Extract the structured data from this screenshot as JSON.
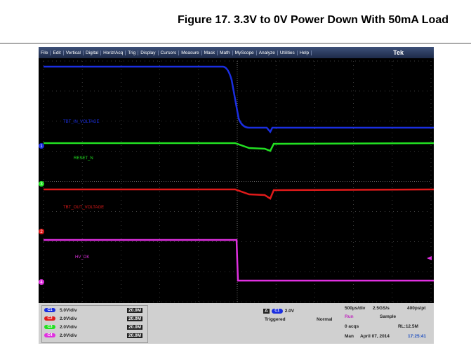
{
  "header": {
    "title": "Figure 17. 3.3V to 0V Power Down With 50mA Load"
  },
  "menu": {
    "items": [
      "File",
      "Edit",
      "Vertical",
      "Digital",
      "Horiz/Acq",
      "Trig",
      "Display",
      "Cursors",
      "Measure",
      "Mask",
      "Math",
      "MyScope",
      "Analyze",
      "Utilities",
      "Help"
    ],
    "brand": "Tek"
  },
  "screen": {
    "traces": [
      {
        "label": "TBT_IN_VOLTAGE",
        "marker": "1",
        "color": "#1a2ee0"
      },
      {
        "label": "RESET_N",
        "marker": "3",
        "color": "#22e022"
      },
      {
        "label": "TBT_OUT_VOLTAGE",
        "marker": "2",
        "color": "#e01a1a"
      },
      {
        "label": "HV_OK",
        "marker": "4",
        "color": "#e030e0"
      }
    ]
  },
  "status": {
    "channels": [
      {
        "name": "C1",
        "scale": "5.0V/div",
        "bandwidth": "20.0M"
      },
      {
        "name": "C2",
        "scale": "2.0V/div",
        "bandwidth": "20.0M"
      },
      {
        "name": "C3",
        "scale": "2.0V/div",
        "bandwidth": "20.0M"
      },
      {
        "name": "C4",
        "scale": "2.0V/div",
        "bandwidth": "20.0M"
      }
    ],
    "trigger": {
      "label": "A",
      "source": "C1",
      "level": "2.0V",
      "state": "Triggered",
      "mode": "Normal"
    },
    "acquisition": {
      "timebase": "500µs/div",
      "sample_rate": "2.5GS/s",
      "resolution": "400ps/pt",
      "run": "Run",
      "mode": "Sample",
      "acqs": "0 acqs",
      "record_length": "RL:12.5M",
      "time_mode": "Man",
      "date": "April 07, 2014",
      "time": "17:25:41"
    }
  }
}
